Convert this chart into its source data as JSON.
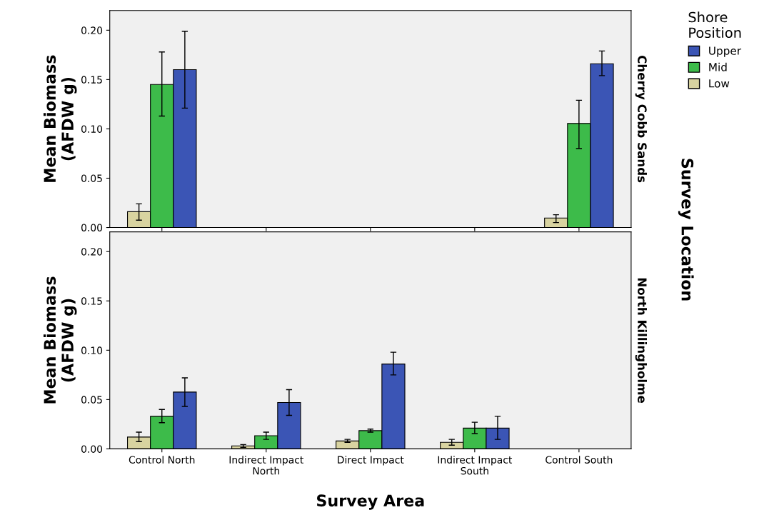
{
  "chart_data": [
    {
      "type": "bar",
      "subtitle": "Cherry Cobb Sands",
      "ylabel": "Mean Biomass\n(AFDW g)",
      "legend_title": "Shore\nPosition",
      "legend": "right",
      "tick_labels": "y",
      "grid": false,
      "categories": [
        null,
        null,
        null,
        null,
        null
      ],
      "ylim": [
        0,
        0.22
      ],
      "yticks": [
        {
          "value": 0,
          "label": "0.00"
        },
        {
          "value": 0.05,
          "label": "0.05"
        },
        {
          "value": 0.1,
          "label": "0.10"
        },
        {
          "value": 0.15,
          "label": "0.15"
        },
        {
          "value": 0.2,
          "label": "0.20"
        }
      ],
      "annotations": [
        "Survey Location"
      ],
      "series": [
        {
          "name": "Low",
          "color": "#d8d3a0",
          "values": [
            0.016,
            null,
            null,
            null,
            0.0096
          ],
          "errors": [
            [
              0.0074,
              0.024
            ],
            null,
            null,
            null,
            [
              0.005,
              0.013
            ]
          ]
        },
        {
          "name": "Mid",
          "color": "#3dbb4a",
          "values": [
            0.145,
            null,
            null,
            null,
            0.1055
          ],
          "errors": [
            [
              0.113,
              0.178
            ],
            null,
            null,
            null,
            [
              0.08,
              0.129
            ]
          ]
        },
        {
          "name": "Upper",
          "color": "#3b55b5",
          "values": [
            0.16,
            null,
            null,
            null,
            0.166
          ],
          "errors": [
            [
              0.121,
              0.199
            ],
            null,
            null,
            null,
            [
              0.154,
              0.179
            ]
          ]
        }
      ]
    },
    {
      "type": "bar",
      "subtitle": "North Killingholme",
      "ylabel": "Mean Biomass\n(AFDW g)",
      "xlabel": "Survey Area",
      "grid": false,
      "categories": [
        "Control North",
        "Indirect Impact\nNorth",
        "Direct Impact",
        "Indirect Impact\nSouth",
        "Control South"
      ],
      "ylim": [
        0,
        0.22
      ],
      "yticks": [
        {
          "value": 0,
          "label": "0.00"
        },
        {
          "value": 0.05,
          "label": "0.05"
        },
        {
          "value": 0.1,
          "label": "0.10"
        },
        {
          "value": 0.15,
          "label": "0.15"
        },
        {
          "value": 0.2,
          "label": "0.20"
        }
      ],
      "series": [
        {
          "color": "#d8d3a0",
          "values": [
            0.012,
            0.003,
            0.008,
            0.0066,
            null
          ],
          "errors": [
            [
              0.0074,
              0.017
            ],
            [
              0.0015,
              0.0044
            ],
            [
              0.0066,
              0.0096
            ],
            [
              0.0037,
              0.0096
            ],
            null
          ]
        },
        {
          "color": "#3dbb4a",
          "values": [
            0.033,
            0.0133,
            0.0185,
            0.021,
            null
          ],
          "errors": [
            [
              0.0266,
              0.04
            ],
            [
              0.0096,
              0.017
            ],
            [
              0.017,
              0.02
            ],
            [
              0.0155,
              0.027
            ],
            null
          ]
        },
        {
          "color": "#3b55b5",
          "values": [
            0.0576,
            0.047,
            0.086,
            0.021,
            null
          ],
          "errors": [
            [
              0.043,
              0.072
            ],
            [
              0.034,
              0.06
            ],
            [
              0.075,
              0.098
            ],
            [
              0.0096,
              0.033
            ],
            null
          ]
        }
      ]
    }
  ]
}
